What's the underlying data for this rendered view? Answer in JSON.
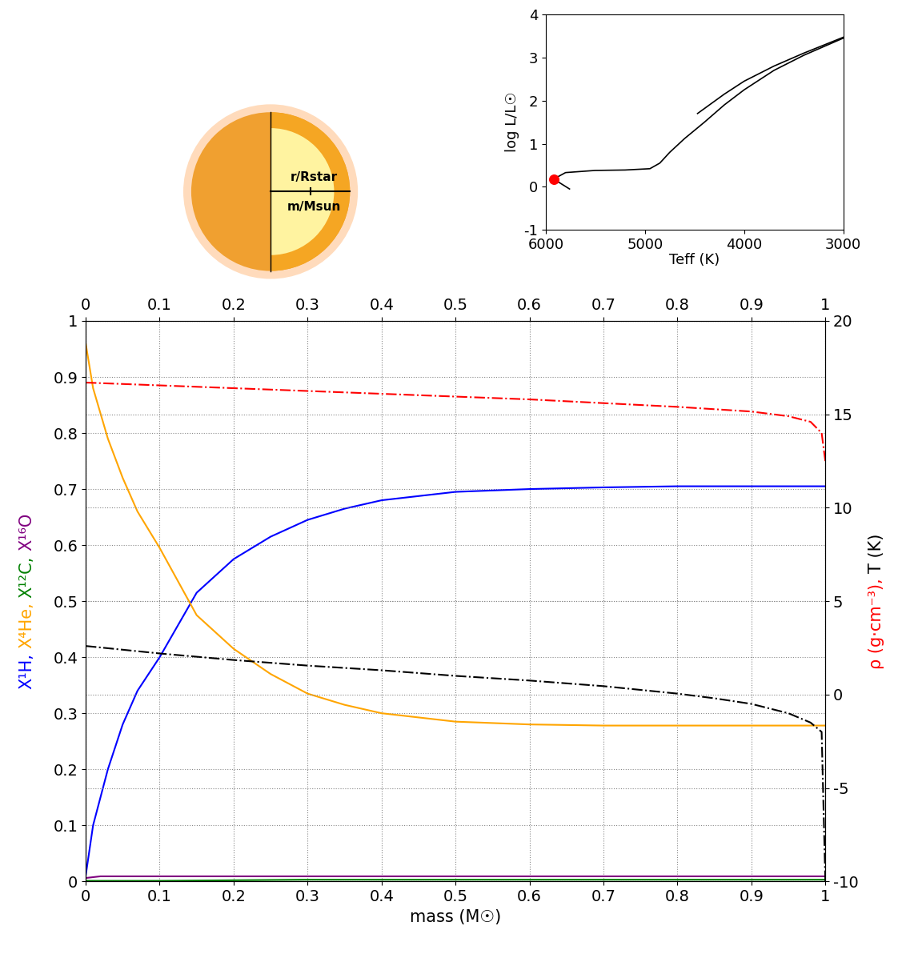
{
  "chart_data": [
    {
      "type": "line",
      "xlabel": "mass (M☉)",
      "ylabel": [
        "X¹H,",
        "X⁴He,",
        "X¹²C,",
        "X¹⁶O"
      ],
      "y2label": [
        "ρ (g·cm⁻³),",
        "T (K)"
      ],
      "xlim": [
        0,
        1
      ],
      "xticks": [
        0,
        0.1,
        0.2,
        0.3,
        0.4,
        0.5,
        0.6,
        0.7,
        0.8,
        0.9,
        1
      ],
      "ylim": [
        0,
        1
      ],
      "yticks": [
        0,
        0.1,
        0.2,
        0.3,
        0.4,
        0.5,
        0.6,
        0.7,
        0.8,
        0.9,
        1
      ],
      "y2lim": [
        -10,
        20
      ],
      "y2ticks": [
        -10,
        -5,
        0,
        5,
        10,
        15,
        20
      ],
      "grid": true,
      "series": [
        {
          "color": "#0000ff",
          "line_style": "solid",
          "x": [
            0,
            0.01,
            0.03,
            0.05,
            0.07,
            0.1,
            0.15,
            0.2,
            0.25,
            0.3,
            0.35,
            0.4,
            0.5,
            0.6,
            0.7,
            0.8,
            0.9,
            1.0
          ],
          "values": [
            0.01,
            0.1,
            0.2,
            0.28,
            0.34,
            0.4,
            0.515,
            0.575,
            0.615,
            0.645,
            0.665,
            0.68,
            0.695,
            0.7,
            0.703,
            0.705,
            0.705,
            0.705
          ]
        },
        {
          "color": "#ffa500",
          "line_style": "solid",
          "x": [
            0,
            0.01,
            0.03,
            0.05,
            0.07,
            0.1,
            0.15,
            0.2,
            0.25,
            0.3,
            0.35,
            0.4,
            0.5,
            0.6,
            0.7,
            0.8,
            0.9,
            1.0
          ],
          "values": [
            0.96,
            0.88,
            0.79,
            0.72,
            0.66,
            0.595,
            0.475,
            0.415,
            0.37,
            0.335,
            0.315,
            0.3,
            0.285,
            0.28,
            0.278,
            0.278,
            0.278,
            0.278
          ]
        },
        {
          "color": "#008000",
          "line_style": "solid",
          "x": [
            0,
            0.1,
            0.2,
            0.3,
            0.4,
            0.6,
            0.8,
            1.0
          ],
          "values": [
            0.001,
            0.001,
            0.002,
            0.003,
            0.003,
            0.003,
            0.003,
            0.003
          ]
        },
        {
          "color": "#800080",
          "line_style": "solid",
          "x": [
            0,
            0.02,
            0.2,
            0.5,
            0.8,
            1.0
          ],
          "values": [
            0.006,
            0.009,
            0.009,
            0.009,
            0.009,
            0.009
          ]
        },
        {
          "color": "#ff0000",
          "line_style": "dashdot",
          "axis": "y2",
          "x": [
            0,
            0.1,
            0.2,
            0.3,
            0.4,
            0.5,
            0.6,
            0.7,
            0.8,
            0.9,
            0.95,
            0.98,
            0.995,
            1.0
          ],
          "values": [
            16.7,
            16.55,
            16.4,
            16.25,
            16.1,
            15.95,
            15.8,
            15.6,
            15.4,
            15.15,
            14.9,
            14.6,
            14.0,
            12.5
          ]
        },
        {
          "color": "#000000",
          "line_style": "dashdot",
          "axis": "y2",
          "x": [
            0,
            0.1,
            0.2,
            0.3,
            0.4,
            0.5,
            0.6,
            0.7,
            0.8,
            0.85,
            0.9,
            0.95,
            0.98,
            0.995,
            1.0
          ],
          "values": [
            2.6,
            2.2,
            1.85,
            1.55,
            1.3,
            1.0,
            0.75,
            0.45,
            0.05,
            -0.2,
            -0.5,
            -1.0,
            -1.5,
            -2.0,
            -10
          ]
        }
      ]
    },
    {
      "type": "line",
      "xlabel": "Teff (K)",
      "ylabel": "log L/L☉",
      "xlim": [
        6000,
        3000
      ],
      "xticks": [
        6000,
        5000,
        4000,
        3000
      ],
      "ylim": [
        -1,
        4
      ],
      "yticks": [
        -1,
        0,
        1,
        2,
        3,
        4
      ],
      "grid": false,
      "series": [
        {
          "color": "#000000",
          "line_style": "solid",
          "x": [
            5760,
            5850,
            5920,
            5800,
            5500,
            5200,
            4950,
            4850,
            4750,
            4600,
            4400,
            4200,
            4000,
            3700,
            3400,
            3000
          ],
          "values": [
            -0.05,
            0.08,
            0.18,
            0.33,
            0.38,
            0.39,
            0.42,
            0.55,
            0.8,
            1.12,
            1.5,
            1.9,
            2.25,
            2.7,
            3.05,
            3.45
          ]
        },
        {
          "color": "#000000",
          "line_style": "solid",
          "x": [
            4470,
            4200,
            4000,
            3700,
            3400,
            3000
          ],
          "values": [
            1.7,
            2.15,
            2.45,
            2.8,
            3.1,
            3.47
          ]
        },
        {
          "type": "scatter",
          "color": "#ff0000",
          "marker": "o",
          "x": [
            5920
          ],
          "values": [
            0.18
          ]
        }
      ]
    }
  ],
  "icon": {
    "labels": [
      "r/Rstar",
      "m/Msun"
    ]
  }
}
